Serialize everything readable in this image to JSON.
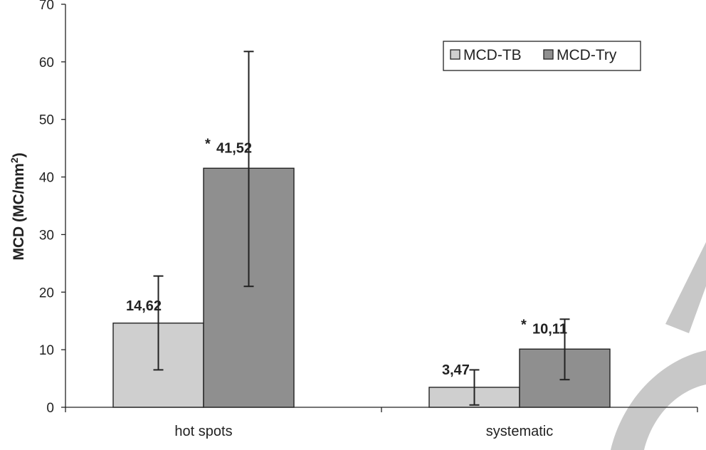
{
  "chart_data": {
    "type": "bar",
    "categories": [
      "hot spots",
      "systematic"
    ],
    "series": [
      {
        "name": "MCD-TB",
        "values": [
          14.62,
          3.47
        ],
        "error_low": [
          6.5,
          0.4
        ],
        "error_high": [
          22.8,
          6.5
        ],
        "labels": [
          "14,62",
          "3,47"
        ],
        "markers": [
          "",
          ""
        ],
        "color": "#cfcfcf"
      },
      {
        "name": "MCD-Try",
        "values": [
          41.52,
          10.11
        ],
        "error_low": [
          21.0,
          4.8
        ],
        "error_high": [
          61.8,
          15.3
        ],
        "labels": [
          "41,52",
          "10,11"
        ],
        "markers": [
          "*",
          "*"
        ],
        "color": "#8f8f8f"
      }
    ],
    "ylabel": "MCD (MC/mm",
    "ylabel_sup": "2",
    "ylabel_close": ")",
    "ylim": [
      0,
      70
    ],
    "yticks": [
      "0",
      "10",
      "20",
      "30",
      "40",
      "50",
      "60",
      "70"
    ],
    "legend_position": "top-right",
    "grid": false
  }
}
